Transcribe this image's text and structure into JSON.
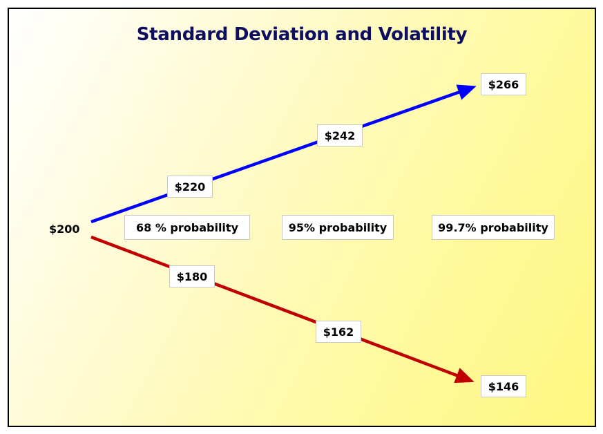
{
  "title": "Standard Deviation and Volatility",
  "start_price": "$200",
  "up_path": {
    "color": "#0000ff",
    "prices": [
      "$220",
      "$242",
      "$266"
    ]
  },
  "down_path": {
    "color": "#c00000",
    "prices": [
      "$180",
      "$162",
      "$146"
    ]
  },
  "probabilities": [
    "68 % probability",
    "95% probability",
    "99.7% probability"
  ]
}
